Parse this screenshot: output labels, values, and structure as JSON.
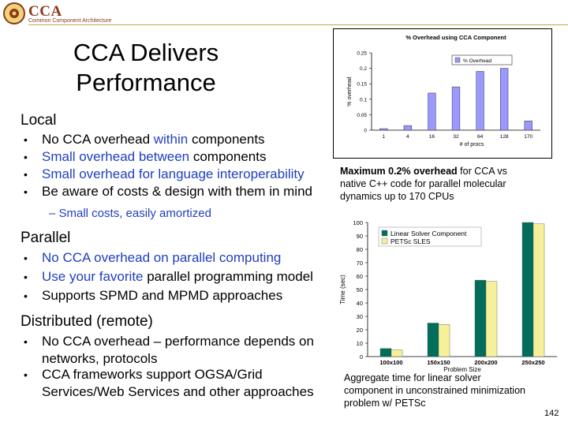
{
  "logo": {
    "title": "CCA",
    "subtitle": "Common Component Architecture"
  },
  "slide_title_line1": "CCA Delivers",
  "slide_title_line2": "Performance",
  "sections": {
    "local": {
      "heading": "Local",
      "b1": {
        "a": "No CCA overhead ",
        "b": "within",
        "c": " components"
      },
      "b2": {
        "a": "Small overhead ",
        "b": "between",
        "c": " components"
      },
      "b3": {
        "a": "Small overhead for ",
        "b": "language interoperability"
      },
      "b4": "Be aware of costs & design with them in mind",
      "sub": "– Small costs, easily amortized"
    },
    "parallel": {
      "heading": "Parallel",
      "b1": {
        "a": "No CCA overhead on ",
        "b": "parallel computing"
      },
      "b2": {
        "a": "Use your favorite",
        "b": " parallel programming model"
      },
      "b3": "Supports SPMD and MPMD approaches"
    },
    "distributed": {
      "heading": "Distributed (remote)",
      "b1_l1": "No CCA overhead – performance depends on",
      "b1_l2": "networks, protocols",
      "b2_l1": "CCA frameworks support OGSA/Grid",
      "b2_l2": "Services/Web Services and other approaches"
    }
  },
  "bullet_glyph": "•",
  "caption1": {
    "bold": "Maximum 0.2%  overhead",
    "rest": " for CCA vs",
    "l2": "native C++ code for parallel molecular",
    "l3": "dynamics up to 170 CPUs"
  },
  "caption2": {
    "l1": "Aggregate time for linear solver",
    "l2": "component in unconstrained minimization",
    "l3": "problem w/ PETSc"
  },
  "page_number": "142",
  "chart_data": [
    {
      "type": "bar",
      "title": "% Overhead using CCA Component",
      "xlabel": "# of procs",
      "ylabel": "% overhead",
      "categories": [
        "1",
        "4",
        "16",
        "32",
        "64",
        "128",
        "170"
      ],
      "series": [
        {
          "name": "% Overhead",
          "values": [
            0.005,
            0.015,
            0.12,
            0.14,
            0.19,
            0.2,
            0.03
          ]
        }
      ],
      "ylim": [
        0,
        0.25
      ],
      "yticks": [
        "0",
        "0.05",
        "0.1",
        "0.15",
        "0.2",
        "0.25"
      ],
      "legend": "top-right",
      "bar_color": "#9999ff"
    },
    {
      "type": "bar",
      "xlabel": "Problem Size",
      "ylabel": "Time (sec)",
      "categories": [
        "100x100",
        "150x150",
        "200x200",
        "250x250"
      ],
      "series": [
        {
          "name": "Linear Solver Component",
          "values": [
            6,
            25,
            57,
            101
          ],
          "color": "#006e5a"
        },
        {
          "name": "PETSc SLES",
          "values": [
            5,
            24,
            56,
            99
          ],
          "color": "#f7f09a"
        }
      ],
      "ylim": [
        0,
        100
      ],
      "yticks": [
        "0",
        "10",
        "20",
        "30",
        "40",
        "50",
        "60",
        "70",
        "80",
        "90",
        "100"
      ],
      "legend": "top-left"
    }
  ]
}
